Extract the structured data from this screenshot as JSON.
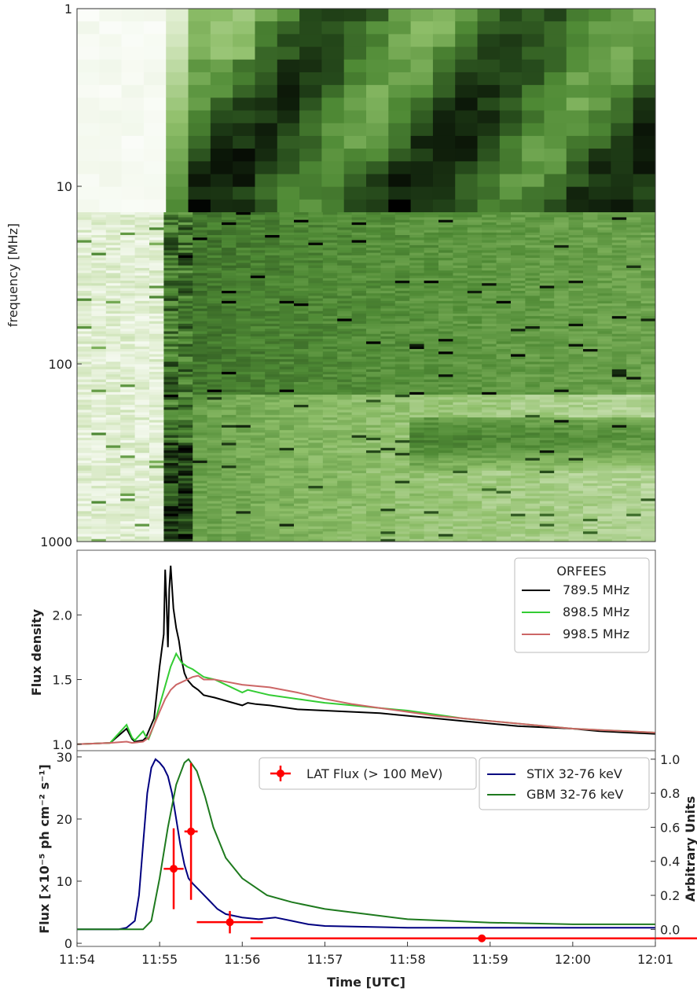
{
  "chart_data": [
    {
      "type": "heatmap",
      "panel": "radio-dynamic-spectrum",
      "ylabel": "frequency [MHz]",
      "yscale": "log",
      "ylim": [
        1,
        1000
      ],
      "y_tick_labels": [
        "1",
        "10",
        "100",
        "1000"
      ],
      "y_ticks": [
        1,
        10,
        100,
        1000
      ],
      "colormap": [
        "#ffffff",
        "#d6e8c2",
        "#8fbf6a",
        "#4f8a35",
        "#24471a",
        "#000000"
      ],
      "features": [
        {
          "kind": "low-frequency band lower edge",
          "freq": 14
        },
        {
          "kind": "band boundary",
          "freq": 150
        },
        {
          "kind": "emission onset",
          "time_approx": "11:55"
        }
      ]
    },
    {
      "type": "line",
      "panel": "orfees-flux",
      "ylabel": "Flux density",
      "ylim": [
        0.95,
        2.5
      ],
      "y_ticks": [
        1.0,
        1.5,
        2.0
      ],
      "y_tick_labels": [
        "1.0",
        "1.5",
        "2.0"
      ],
      "legend_title": "ORFEES",
      "legend_position": "top-right",
      "series": [
        {
          "name": "789.5 MHz",
          "color": "#000000",
          "x": [
            0,
            1.2,
            1.8,
            2.0,
            2.1,
            2.4,
            2.5,
            2.6,
            2.8,
            2.9,
            3.0,
            3.15,
            3.2,
            3.25,
            3.3,
            3.35,
            3.4,
            3.5,
            3.6,
            3.7,
            3.8,
            3.9,
            4.0,
            4.2,
            4.4,
            4.6,
            5.0,
            5.5,
            6.0,
            6.2,
            6.5,
            7.0,
            8.0,
            9.0,
            10.0,
            11.0,
            12.0,
            13.0,
            14.0,
            15.0,
            16.0,
            17.0,
            18.0,
            19.0,
            20.0,
            21.0
          ],
          "y": [
            1.0,
            1.01,
            1.12,
            1.04,
            1.02,
            1.03,
            1.05,
            1.1,
            1.2,
            1.4,
            1.6,
            1.85,
            2.35,
            2.1,
            1.75,
            2.2,
            2.38,
            2.05,
            1.9,
            1.8,
            1.65,
            1.55,
            1.5,
            1.45,
            1.42,
            1.38,
            1.36,
            1.33,
            1.3,
            1.32,
            1.31,
            1.3,
            1.27,
            1.26,
            1.25,
            1.24,
            1.22,
            1.2,
            1.18,
            1.16,
            1.14,
            1.13,
            1.12,
            1.1,
            1.09,
            1.08
          ]
        },
        {
          "name": "898.5 MHz",
          "color": "#33cc33",
          "x": [
            0,
            1.2,
            1.8,
            2.0,
            2.1,
            2.4,
            2.5,
            2.6,
            2.8,
            3.0,
            3.2,
            3.4,
            3.6,
            3.8,
            4.0,
            4.2,
            4.4,
            4.6,
            5.0,
            5.5,
            6.0,
            6.2,
            7.0,
            8.0,
            9.0,
            10.0,
            11.0,
            12.0,
            13.0,
            14.0,
            15.0,
            16.0,
            17.0,
            18.0,
            19.0,
            20.0,
            21.0
          ],
          "y": [
            1.0,
            1.01,
            1.15,
            1.05,
            1.03,
            1.1,
            1.06,
            1.04,
            1.15,
            1.3,
            1.45,
            1.6,
            1.7,
            1.63,
            1.6,
            1.58,
            1.55,
            1.52,
            1.5,
            1.45,
            1.4,
            1.42,
            1.38,
            1.35,
            1.32,
            1.3,
            1.28,
            1.26,
            1.23,
            1.2,
            1.18,
            1.16,
            1.14,
            1.12,
            1.11,
            1.1,
            1.09
          ]
        },
        {
          "name": "998.5 MHz",
          "color": "#cc6666",
          "x": [
            0,
            1.2,
            1.8,
            2.0,
            2.4,
            2.6,
            2.8,
            3.0,
            3.2,
            3.4,
            3.6,
            3.8,
            4.0,
            4.2,
            4.4,
            4.6,
            5.0,
            5.5,
            6.0,
            7.0,
            8.0,
            9.0,
            10.0,
            11.0,
            12.0,
            13.0,
            14.0,
            15.0,
            16.0,
            17.0,
            18.0,
            19.0,
            20.0,
            21.0
          ],
          "y": [
            1.0,
            1.01,
            1.02,
            1.01,
            1.02,
            1.05,
            1.15,
            1.25,
            1.35,
            1.42,
            1.46,
            1.48,
            1.5,
            1.52,
            1.53,
            1.5,
            1.5,
            1.48,
            1.46,
            1.44,
            1.4,
            1.35,
            1.31,
            1.28,
            1.25,
            1.22,
            1.2,
            1.18,
            1.16,
            1.14,
            1.12,
            1.11,
            1.1,
            1.09
          ]
        }
      ]
    },
    {
      "type": "line",
      "panel": "hxr-gamma",
      "xlabel": "Time [UTC]",
      "x_tick_labels": [
        "11:54",
        "11:55",
        "11:56",
        "11:57",
        "11:58",
        "11:59",
        "12:00",
        "12:01"
      ],
      "x_unit": "minutes after 11:54",
      "xlim": [
        0,
        7
      ],
      "ylabel": "Flux [×10⁻⁵ ph cm⁻² s⁻¹]",
      "ylim": [
        -0.5,
        31
      ],
      "y_ticks": [
        0,
        10,
        20,
        30
      ],
      "y_tick_labels": [
        "0",
        "10",
        "20",
        "30"
      ],
      "y2label": "Arbitrary Units",
      "y2lim": [
        -0.1,
        1.05
      ],
      "y2_ticks": [
        0.0,
        0.2,
        0.4,
        0.6,
        0.8,
        1.0
      ],
      "y2_tick_labels": [
        "0.0",
        "0.2",
        "0.4",
        "0.6",
        "0.8",
        "1.0"
      ],
      "legend_position": "top-right",
      "series": [
        {
          "name": "STIX 32-76 keV",
          "color": "#000080",
          "axis": "right",
          "x": [
            0,
            0.5,
            0.6,
            0.7,
            0.75,
            0.8,
            0.85,
            0.9,
            0.95,
            1.0,
            1.05,
            1.1,
            1.15,
            1.2,
            1.25,
            1.3,
            1.35,
            1.4,
            1.5,
            1.6,
            1.7,
            1.8,
            2.0,
            2.2,
            2.4,
            2.6,
            2.8,
            3.0,
            4.0,
            5.0,
            6.0,
            7.0
          ],
          "y": [
            0.0,
            0.0,
            0.01,
            0.05,
            0.2,
            0.5,
            0.8,
            0.95,
            1.0,
            0.98,
            0.95,
            0.9,
            0.8,
            0.65,
            0.5,
            0.38,
            0.3,
            0.27,
            0.22,
            0.17,
            0.12,
            0.09,
            0.07,
            0.06,
            0.07,
            0.05,
            0.03,
            0.02,
            0.01,
            0.01,
            0.01,
            0.01
          ]
        },
        {
          "name": "GBM 32-76 keV",
          "color": "#1e7a1e",
          "axis": "right",
          "x": [
            0,
            0.8,
            0.9,
            1.0,
            1.1,
            1.2,
            1.3,
            1.35,
            1.45,
            1.55,
            1.65,
            1.8,
            2.0,
            2.3,
            2.6,
            3.0,
            3.5,
            4.0,
            4.5,
            5.0,
            6.0,
            7.0
          ],
          "y": [
            0.0,
            0.0,
            0.05,
            0.3,
            0.6,
            0.85,
            0.98,
            1.0,
            0.93,
            0.78,
            0.6,
            0.42,
            0.3,
            0.2,
            0.16,
            0.12,
            0.09,
            0.06,
            0.05,
            0.04,
            0.03,
            0.03
          ]
        },
        {
          "name": "LAT Flux (> 100 MeV)",
          "color": "#ff0000",
          "axis": "left",
          "style": "errorbar",
          "x": [
            1.17,
            1.38,
            1.85,
            4.9
          ],
          "y": [
            12,
            18,
            3.4,
            0.8
          ],
          "x_err": [
            0.12,
            0.08,
            0.4,
            2.8
          ],
          "y_err": [
            6.5,
            11,
            1.8,
            0
          ]
        }
      ]
    }
  ]
}
